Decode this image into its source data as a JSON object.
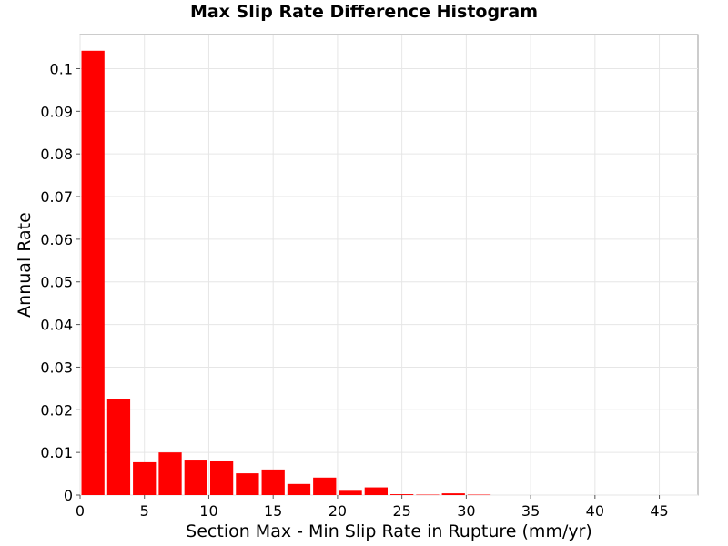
{
  "chart_data": {
    "type": "bar",
    "title": "Max Slip Rate Difference Histogram",
    "xlabel": "Section Max - Min Slip Rate in Rupture (mm/yr)",
    "ylabel": "Annual Rate",
    "xlim": [
      0,
      48
    ],
    "ylim": [
      0,
      0.108
    ],
    "x_ticks": [
      0,
      5,
      10,
      15,
      20,
      25,
      30,
      35,
      40,
      45
    ],
    "y_ticks": [
      0,
      0.01,
      0.02,
      0.03,
      0.04,
      0.05,
      0.06,
      0.07,
      0.08,
      0.09,
      0.1
    ],
    "bin_width": 2,
    "bin_centers": [
      1,
      3,
      5,
      7,
      9,
      11,
      13,
      15,
      17,
      19,
      21,
      23,
      25,
      27,
      29,
      31
    ],
    "values": [
      0.1042,
      0.0225,
      0.0077,
      0.01,
      0.0081,
      0.0079,
      0.0051,
      0.006,
      0.0026,
      0.0041,
      0.001,
      0.0018,
      0.0002,
      0.0001,
      0.0004,
      0.0001
    ],
    "bar_color": "#ff0000",
    "grid": true,
    "legend": "none"
  }
}
